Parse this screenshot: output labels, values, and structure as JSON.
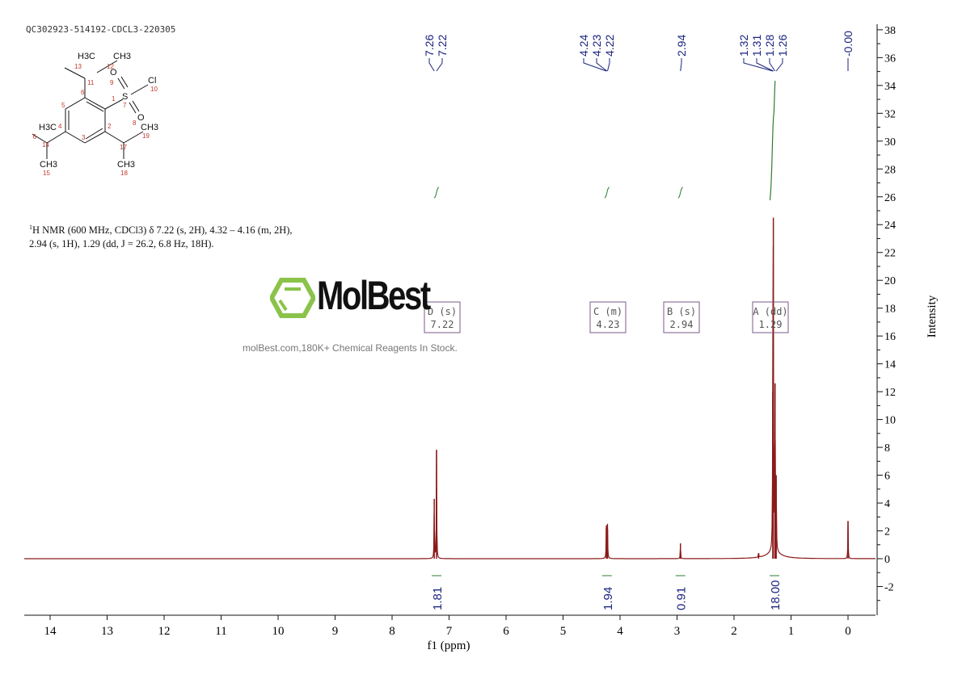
{
  "header": {
    "sample_id": "QC302923-514192-CDCL3-220305"
  },
  "description": {
    "line1": "H NMR (600 MHz, CDCl3) δ 7.22 (s, 2H), 4.32 – 4.16 (m, 2H),",
    "sup": "1",
    "line2": "2.94 (s, 1H), 1.29 (dd, J = 26.2, 6.8 Hz, 18H)."
  },
  "structure": {
    "atoms": [
      "H3C",
      "CH3",
      "O",
      "Cl",
      "S",
      "O",
      "H3C",
      "CH3",
      "CH3",
      "CH3"
    ],
    "numbers": [
      "1",
      "2",
      "3",
      "4",
      "5",
      "6",
      "7",
      "8",
      "9",
      "10",
      "11",
      "12",
      "13",
      "14",
      "15",
      "16",
      "17",
      "18",
      "19"
    ]
  },
  "watermark": {
    "brand": "MolBest",
    "tagline": "molBest.com,180K+ Chemical Reagents In Stock."
  },
  "chart_data": {
    "type": "line",
    "xlabel": "f1 (ppm)",
    "ylabel": "Intensity",
    "xlim": [
      14.45,
      -0.48
    ],
    "ylim": [
      -3.8,
      38.5
    ],
    "xticks": [
      "14",
      "13",
      "12",
      "11",
      "10",
      "9",
      "8",
      "7",
      "6",
      "5",
      "4",
      "3",
      "2",
      "1",
      "0"
    ],
    "yticks": [
      "-2",
      "0",
      "2",
      "4",
      "6",
      "8",
      "10",
      "12",
      "14",
      "16",
      "18",
      "20",
      "22",
      "24",
      "26",
      "28",
      "30",
      "32",
      "34",
      "36",
      "38"
    ],
    "line_color": "#8b1a1a",
    "integral_color": "#2e7d32",
    "label_color": "#1a237e",
    "peaks": [
      {
        "ppm": 7.26,
        "height": 4.3
      },
      {
        "ppm": 7.22,
        "height": 7.8
      },
      {
        "ppm": 4.24,
        "height": 2.2
      },
      {
        "ppm": 4.23,
        "height": 2.4
      },
      {
        "ppm": 4.22,
        "height": 2.1
      },
      {
        "ppm": 2.94,
        "height": 1.1
      },
      {
        "ppm": 1.57,
        "height": 0.4
      },
      {
        "ppm": 1.32,
        "height": 12.0
      },
      {
        "ppm": 1.31,
        "height": 24.5
      },
      {
        "ppm": 1.28,
        "height": 12.6
      },
      {
        "ppm": 1.26,
        "height": 6.0
      },
      {
        "ppm": 0.0,
        "height": 2.7
      }
    ],
    "peak_labels": [
      "7.26",
      "7.22",
      "4.24",
      "4.23",
      "4.22",
      "2.94",
      "1.32",
      "1.31",
      "1.28",
      "1.26",
      "-0.00"
    ],
    "integrals": [
      {
        "center": 7.22,
        "value": "1.81"
      },
      {
        "center": 4.23,
        "value": "1.94"
      },
      {
        "center": 2.94,
        "value": "0.91"
      },
      {
        "center": 1.29,
        "value": "18.00"
      }
    ],
    "multiplets": [
      {
        "label": "D (s)",
        "shift": "7.22"
      },
      {
        "label": "C (m)",
        "shift": "4.23"
      },
      {
        "label": "B (s)",
        "shift": "2.94"
      },
      {
        "label": "A (dd)",
        "shift": "1.29"
      }
    ]
  }
}
